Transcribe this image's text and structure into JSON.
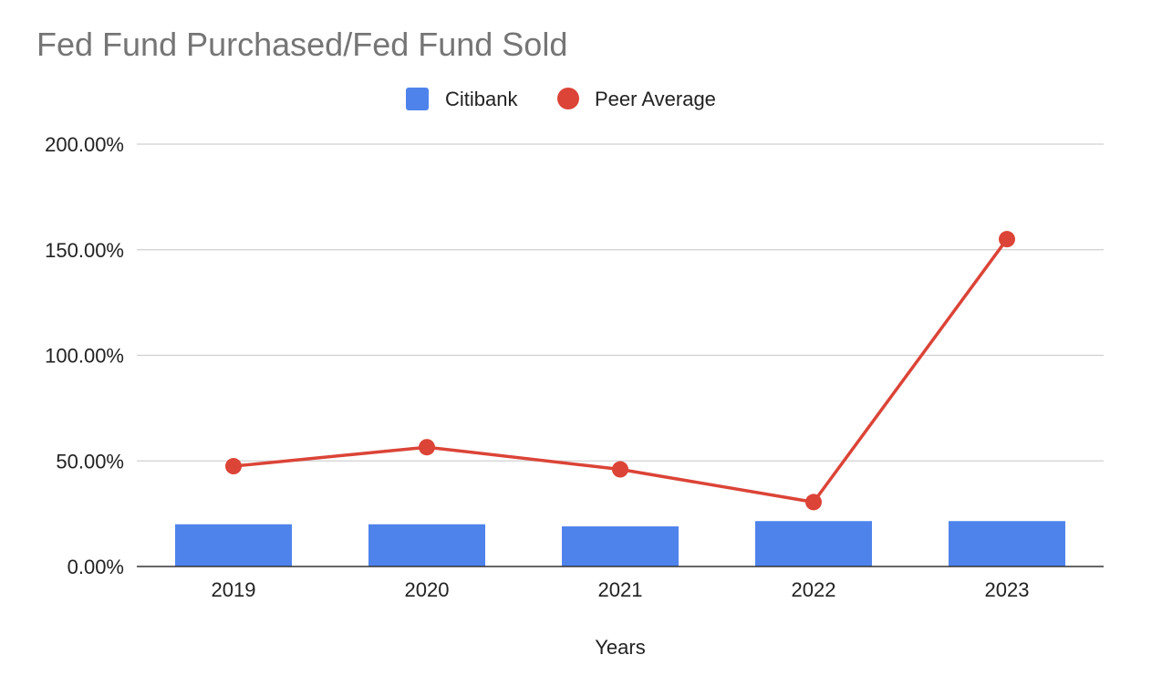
{
  "chart_data": {
    "type": "bar",
    "title": "Fed Fund Purchased/Fed Fund Sold",
    "xlabel": "Years",
    "ylabel": "",
    "categories": [
      "2019",
      "2020",
      "2021",
      "2022",
      "2023"
    ],
    "ylim": [
      0,
      200
    ],
    "yticks": [
      0,
      50,
      100,
      150,
      200
    ],
    "ytick_labels": [
      "0.00%",
      "50.00%",
      "100.00%",
      "150.00%",
      "200.00%"
    ],
    "grid": true,
    "legend_position": "top-center",
    "series": [
      {
        "name": "Citibank",
        "type": "bar",
        "color": "#4f83ec",
        "values": [
          20,
          20,
          19,
          21.5,
          21.5
        ]
      },
      {
        "name": "Peer Average",
        "type": "line",
        "color": "#db4437",
        "values": [
          47.5,
          56.5,
          46,
          30.5,
          155
        ]
      }
    ]
  }
}
